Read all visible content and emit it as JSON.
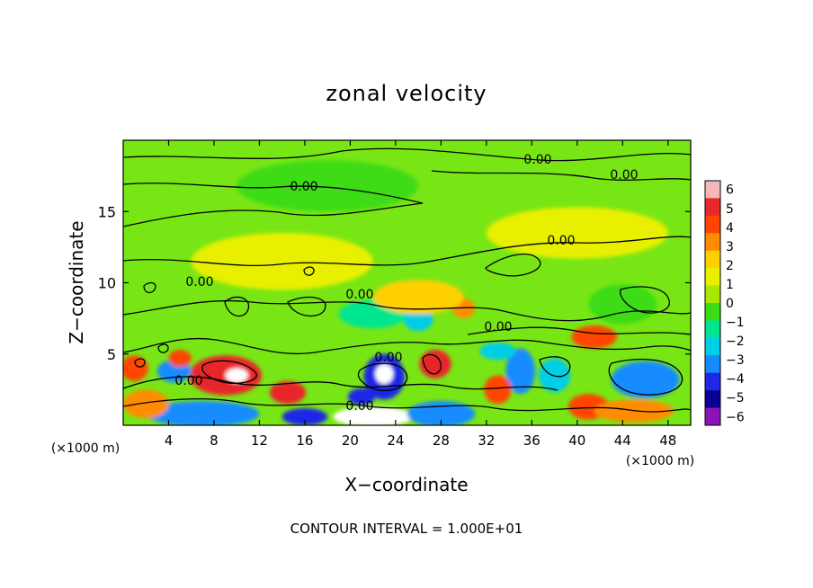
{
  "chart_data": {
    "type": "heatmap",
    "title": "zonal velocity",
    "xlabel": "X−coordinate",
    "ylabel": "Z−coordinate",
    "x_unit_left": "(×1000 m)",
    "x_unit_right": "(×1000 m)",
    "xlim": [
      0,
      50
    ],
    "ylim": [
      0,
      20
    ],
    "xticks": [
      4,
      8,
      12,
      16,
      20,
      24,
      28,
      32,
      36,
      40,
      44,
      48
    ],
    "yticks": [
      5,
      10,
      15
    ],
    "footer": "CONTOUR INTERVAL = 1.000E+01",
    "colorbar": {
      "ticks": [
        "6",
        "5",
        "4",
        "3",
        "2",
        "1",
        "0",
        "−1",
        "−2",
        "−3",
        "−4",
        "−5",
        "−6"
      ],
      "colors": [
        "#f4b8b8",
        "#e8282a",
        "#ff4400",
        "#ff8c00",
        "#ffd000",
        "#e8f000",
        "#a6e800",
        "#3cdc14",
        "#00e690",
        "#00cde6",
        "#148cff",
        "#1e28e6",
        "#0a0096",
        "#8c14b4"
      ]
    },
    "contour_label": "0.00",
    "field": {
      "background": "#78e614",
      "blobs": [
        {
          "x": 9,
          "z": 3.5,
          "rx": 3.2,
          "rz": 1.4,
          "v": 5
        },
        {
          "x": 10,
          "z": 3.5,
          "rx": 1.0,
          "rz": 0.5,
          "v": 6
        },
        {
          "x": 4.5,
          "z": 3.8,
          "rx": 1.5,
          "rz": 0.8,
          "v": -4
        },
        {
          "x": 1,
          "z": 4.0,
          "rx": 1.2,
          "rz": 0.9,
          "v": 4
        },
        {
          "x": 5,
          "z": 4.7,
          "rx": 1.0,
          "rz": 0.6,
          "v": 4
        },
        {
          "x": 23,
          "z": 3.4,
          "rx": 1.8,
          "rz": 1.6,
          "v": -5
        },
        {
          "x": 23,
          "z": 3.6,
          "rx": 0.8,
          "rz": 0.7,
          "v": 6
        },
        {
          "x": 27.5,
          "z": 4.3,
          "rx": 1.4,
          "rz": 1.0,
          "v": 5
        },
        {
          "x": 21,
          "z": 2.0,
          "rx": 1.2,
          "rz": 0.6,
          "v": -5
        },
        {
          "x": 35,
          "z": 3.8,
          "rx": 1.3,
          "rz": 1.6,
          "v": -4
        },
        {
          "x": 38,
          "z": 3.5,
          "rx": 1.4,
          "rz": 1.2,
          "v": -3
        },
        {
          "x": 41.5,
          "z": 6.2,
          "rx": 2.0,
          "rz": 0.8,
          "v": 4
        },
        {
          "x": 46,
          "z": 3.2,
          "rx": 3.0,
          "rz": 1.3,
          "v": -4
        },
        {
          "x": 14.5,
          "z": 2.3,
          "rx": 1.6,
          "rz": 0.8,
          "v": 5
        },
        {
          "x": 33,
          "z": 2.5,
          "rx": 1.2,
          "rz": 1.0,
          "v": 4
        },
        {
          "x": 41,
          "z": 1.3,
          "rx": 1.8,
          "rz": 0.9,
          "v": 4
        },
        {
          "x": 30,
          "z": 8.2,
          "rx": 1.0,
          "rz": 0.7,
          "v": 3
        },
        {
          "x": 22,
          "z": 7.8,
          "rx": 3.0,
          "rz": 1.0,
          "v": -2
        },
        {
          "x": 26,
          "z": 7.4,
          "rx": 1.3,
          "rz": 0.8,
          "v": -3
        },
        {
          "x": 7,
          "z": 0.8,
          "rx": 5.0,
          "rz": 0.9,
          "v": -4
        },
        {
          "x": 22,
          "z": 0.6,
          "rx": 3.5,
          "rz": 0.7,
          "v": 6
        },
        {
          "x": 28,
          "z": 0.8,
          "rx": 3.0,
          "rz": 0.9,
          "v": -4
        },
        {
          "x": 16,
          "z": 0.6,
          "rx": 2.0,
          "rz": 0.6,
          "v": -5
        },
        {
          "x": 45,
          "z": 1.0,
          "rx": 3.5,
          "rz": 0.8,
          "v": 3
        },
        {
          "x": 2,
          "z": 1.5,
          "rx": 2.0,
          "rz": 1.0,
          "v": 3
        },
        {
          "x": 18,
          "z": 16.8,
          "rx": 8.0,
          "rz": 1.8,
          "v": -1
        },
        {
          "x": 14,
          "z": 11.5,
          "rx": 8.0,
          "rz": 2.0,
          "v": 1
        },
        {
          "x": 40,
          "z": 13.5,
          "rx": 8.0,
          "rz": 1.8,
          "v": 1
        },
        {
          "x": 26,
          "z": 9.0,
          "rx": 4.0,
          "rz": 1.2,
          "v": 2
        },
        {
          "x": 33,
          "z": 5.2,
          "rx": 1.6,
          "rz": 0.6,
          "v": -3
        },
        {
          "x": 44,
          "z": 8.5,
          "rx": 3.0,
          "rz": 1.4,
          "v": -1
        }
      ]
    }
  }
}
